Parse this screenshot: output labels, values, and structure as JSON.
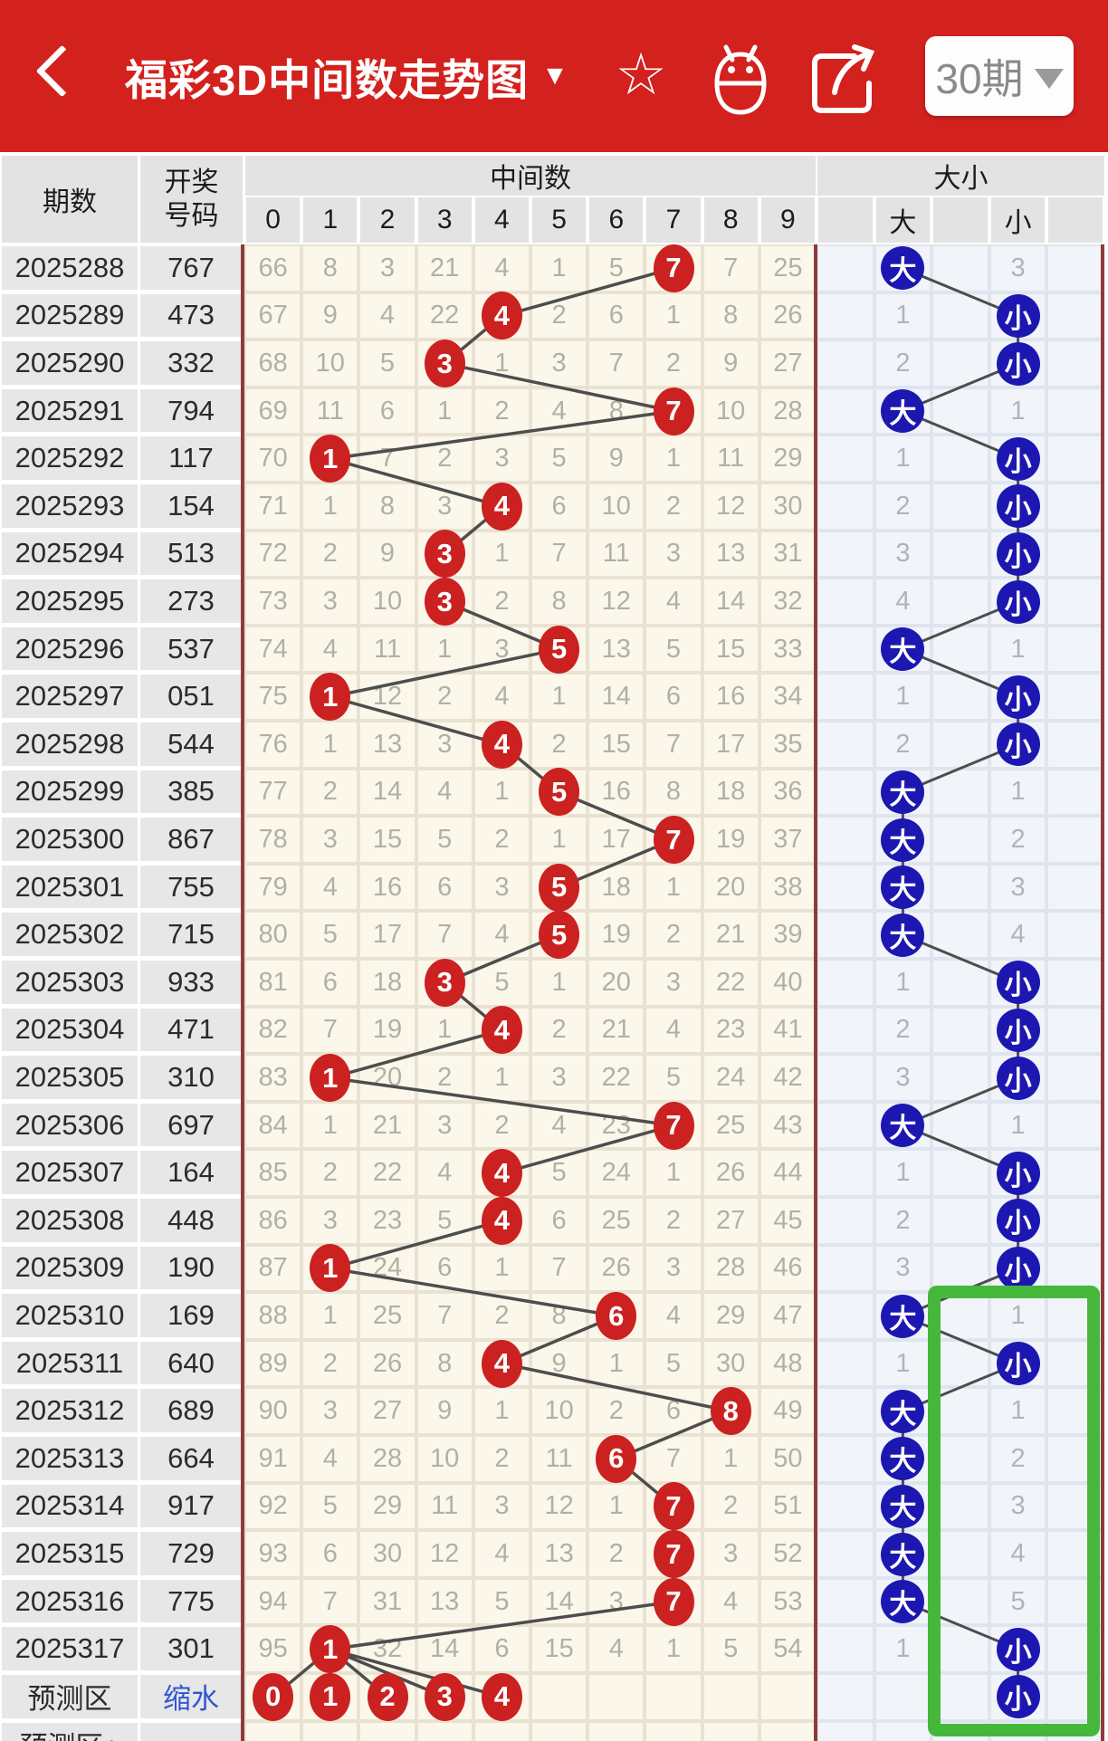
{
  "header": {
    "title": "福彩3D中间数走势图",
    "caret": "▼",
    "star_icon": "☆",
    "period_selector": {
      "label": "30期"
    }
  },
  "colors": {
    "topbar_red": "#d3211e",
    "red_circle": "#cb2120",
    "blue_circle": "#1d17b2",
    "green_box": "#45b83c",
    "link_blue": "#3056d3"
  },
  "table": {
    "col_headers": {
      "period": "期数",
      "code_line1": "开奖",
      "code_line2": "号码",
      "middle": "中间数",
      "digits": [
        "0",
        "1",
        "2",
        "3",
        "4",
        "5",
        "6",
        "7",
        "8",
        "9"
      ],
      "bigsmall": "大小",
      "big": "大",
      "small": "小"
    },
    "labels": {
      "big": "大",
      "small": "小"
    },
    "rows": [
      {
        "period": "2025288",
        "code": "767",
        "hit": 7,
        "cells": [
          66,
          8,
          3,
          21,
          4,
          1,
          5,
          7,
          7,
          25
        ],
        "side": "big",
        "other_count": "3"
      },
      {
        "period": "2025289",
        "code": "473",
        "hit": 4,
        "cells": [
          67,
          9,
          4,
          22,
          4,
          2,
          6,
          1,
          8,
          26
        ],
        "side": "small",
        "other_count": "1"
      },
      {
        "period": "2025290",
        "code": "332",
        "hit": 3,
        "cells": [
          68,
          10,
          5,
          3,
          1,
          3,
          7,
          2,
          9,
          27
        ],
        "side": "small",
        "other_count": "2"
      },
      {
        "period": "2025291",
        "code": "794",
        "hit": 7,
        "cells": [
          69,
          11,
          6,
          1,
          2,
          4,
          8,
          7,
          10,
          28
        ],
        "side": "big",
        "other_count": "1"
      },
      {
        "period": "2025292",
        "code": "117",
        "hit": 1,
        "cells": [
          70,
          1,
          7,
          2,
          3,
          5,
          9,
          1,
          11,
          29
        ],
        "side": "small",
        "other_count": "1"
      },
      {
        "period": "2025293",
        "code": "154",
        "hit": 4,
        "cells": [
          71,
          1,
          8,
          3,
          4,
          6,
          10,
          2,
          12,
          30
        ],
        "side": "small",
        "other_count": "2"
      },
      {
        "period": "2025294",
        "code": "513",
        "hit": 3,
        "cells": [
          72,
          2,
          9,
          3,
          1,
          7,
          11,
          3,
          13,
          31
        ],
        "side": "small",
        "other_count": "3"
      },
      {
        "period": "2025295",
        "code": "273",
        "hit": 3,
        "cells": [
          73,
          3,
          10,
          3,
          2,
          8,
          12,
          4,
          14,
          32
        ],
        "side": "small",
        "other_count": "4"
      },
      {
        "period": "2025296",
        "code": "537",
        "hit": 5,
        "cells": [
          74,
          4,
          11,
          1,
          3,
          5,
          13,
          5,
          15,
          33
        ],
        "side": "big",
        "other_count": "1"
      },
      {
        "period": "2025297",
        "code": "051",
        "hit": 1,
        "cells": [
          75,
          1,
          12,
          2,
          4,
          1,
          14,
          6,
          16,
          34
        ],
        "side": "small",
        "other_count": "1"
      },
      {
        "period": "2025298",
        "code": "544",
        "hit": 4,
        "cells": [
          76,
          1,
          13,
          3,
          4,
          2,
          15,
          7,
          17,
          35
        ],
        "side": "small",
        "other_count": "2"
      },
      {
        "period": "2025299",
        "code": "385",
        "hit": 5,
        "cells": [
          77,
          2,
          14,
          4,
          1,
          5,
          16,
          8,
          18,
          36
        ],
        "side": "big",
        "other_count": "1"
      },
      {
        "period": "2025300",
        "code": "867",
        "hit": 7,
        "cells": [
          78,
          3,
          15,
          5,
          2,
          1,
          17,
          7,
          19,
          37
        ],
        "side": "big",
        "other_count": "2"
      },
      {
        "period": "2025301",
        "code": "755",
        "hit": 5,
        "cells": [
          79,
          4,
          16,
          6,
          3,
          5,
          18,
          1,
          20,
          38
        ],
        "side": "big",
        "other_count": "3"
      },
      {
        "period": "2025302",
        "code": "715",
        "hit": 5,
        "cells": [
          80,
          5,
          17,
          7,
          4,
          5,
          19,
          2,
          21,
          39
        ],
        "side": "big",
        "other_count": "4"
      },
      {
        "period": "2025303",
        "code": "933",
        "hit": 3,
        "cells": [
          81,
          6,
          18,
          3,
          5,
          1,
          20,
          3,
          22,
          40
        ],
        "side": "small",
        "other_count": "1"
      },
      {
        "period": "2025304",
        "code": "471",
        "hit": 4,
        "cells": [
          82,
          7,
          19,
          1,
          4,
          2,
          21,
          4,
          23,
          41
        ],
        "side": "small",
        "other_count": "2"
      },
      {
        "period": "2025305",
        "code": "310",
        "hit": 1,
        "cells": [
          83,
          1,
          20,
          2,
          1,
          3,
          22,
          5,
          24,
          42
        ],
        "side": "small",
        "other_count": "3"
      },
      {
        "period": "2025306",
        "code": "697",
        "hit": 7,
        "cells": [
          84,
          1,
          21,
          3,
          2,
          4,
          23,
          7,
          25,
          43
        ],
        "side": "big",
        "other_count": "1"
      },
      {
        "period": "2025307",
        "code": "164",
        "hit": 4,
        "cells": [
          85,
          2,
          22,
          4,
          4,
          5,
          24,
          1,
          26,
          44
        ],
        "side": "small",
        "other_count": "1"
      },
      {
        "period": "2025308",
        "code": "448",
        "hit": 4,
        "cells": [
          86,
          3,
          23,
          5,
          4,
          6,
          25,
          2,
          27,
          45
        ],
        "side": "small",
        "other_count": "2"
      },
      {
        "period": "2025309",
        "code": "190",
        "hit": 1,
        "cells": [
          87,
          1,
          24,
          6,
          1,
          7,
          26,
          3,
          28,
          46
        ],
        "side": "small",
        "other_count": "3"
      },
      {
        "period": "2025310",
        "code": "169",
        "hit": 6,
        "cells": [
          88,
          1,
          25,
          7,
          2,
          8,
          6,
          4,
          29,
          47
        ],
        "side": "big",
        "other_count": "1"
      },
      {
        "period": "2025311",
        "code": "640",
        "hit": 4,
        "cells": [
          89,
          2,
          26,
          8,
          4,
          9,
          1,
          5,
          30,
          48
        ],
        "side": "small",
        "other_count": "1"
      },
      {
        "period": "2025312",
        "code": "689",
        "hit": 8,
        "cells": [
          90,
          3,
          27,
          9,
          1,
          10,
          2,
          6,
          8,
          49
        ],
        "side": "big",
        "other_count": "1"
      },
      {
        "period": "2025313",
        "code": "664",
        "hit": 6,
        "cells": [
          91,
          4,
          28,
          10,
          2,
          11,
          6,
          7,
          1,
          50
        ],
        "side": "big",
        "other_count": "2"
      },
      {
        "period": "2025314",
        "code": "917",
        "hit": 7,
        "cells": [
          92,
          5,
          29,
          11,
          3,
          12,
          1,
          7,
          2,
          51
        ],
        "side": "big",
        "other_count": "3"
      },
      {
        "period": "2025315",
        "code": "729",
        "hit": 7,
        "cells": [
          93,
          6,
          30,
          12,
          4,
          13,
          2,
          7,
          3,
          52
        ],
        "side": "big",
        "other_count": "4"
      },
      {
        "period": "2025316",
        "code": "775",
        "hit": 7,
        "cells": [
          94,
          7,
          31,
          13,
          5,
          14,
          3,
          7,
          4,
          53
        ],
        "side": "big",
        "other_count": "5"
      },
      {
        "period": "2025317",
        "code": "301",
        "hit": 1,
        "cells": [
          95,
          1,
          32,
          14,
          6,
          15,
          4,
          1,
          5,
          54
        ],
        "side": "small",
        "other_count": "1"
      }
    ],
    "prediction": {
      "label": "预测区",
      "code_link": "缩水",
      "digits": [
        "0",
        "1",
        "2",
        "3",
        "4"
      ],
      "side": "small"
    },
    "footer_partial_label": "预测区+"
  }
}
